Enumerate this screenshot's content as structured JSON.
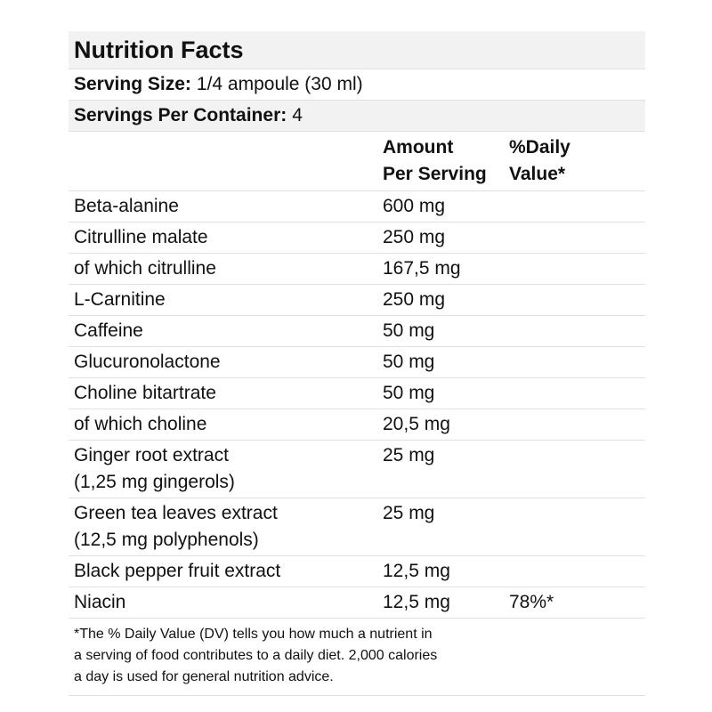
{
  "label": {
    "title": "Nutrition Facts",
    "serving_size": {
      "label": "Serving Size:",
      "value": "1/4 ampoule (30 ml)"
    },
    "servings_per_container": {
      "label": "Servings Per Container:",
      "value": "4"
    },
    "columns": {
      "amount_line1": "Amount",
      "amount_line2": "Per Serving",
      "dv_line1": "%Daily",
      "dv_line2": "Value*"
    },
    "rows": [
      {
        "name": "Beta-alanine",
        "amount": "600 mg",
        "dv": ""
      },
      {
        "name": "Citrulline malate",
        "amount": "250 mg",
        "dv": ""
      },
      {
        "name": "of which citrulline",
        "amount": "167,5 mg",
        "dv": ""
      },
      {
        "name": "L-Carnitine",
        "amount": "250 mg",
        "dv": ""
      },
      {
        "name": "Caffeine",
        "amount": "50 mg",
        "dv": ""
      },
      {
        "name": "Glucuronolactone",
        "amount": "50 mg",
        "dv": ""
      },
      {
        "name": "Choline bitartrate",
        "amount": "50 mg",
        "dv": ""
      },
      {
        "name": "of which choline",
        "amount": "20,5 mg",
        "dv": ""
      },
      {
        "name": "Ginger root extract",
        "name_line2": "(1,25 mg gingerols)",
        "amount": "25 mg",
        "dv": ""
      },
      {
        "name": "Green tea leaves extract",
        "name_line2": "(12,5 mg polyphenols)",
        "amount": "25 mg",
        "dv": ""
      },
      {
        "name": "Black pepper fruit extract",
        "amount": "12,5 mg",
        "dv": ""
      },
      {
        "name": "Niacin",
        "amount": "12,5 mg",
        "dv": "78%*"
      }
    ],
    "footnote": {
      "line1": "*The % Daily Value (DV) tells you how much a nutrient in",
      "line2": "a serving of food contributes to a daily diet. 2,000 calories",
      "line3": "a day is used for general nutrition advice."
    }
  }
}
